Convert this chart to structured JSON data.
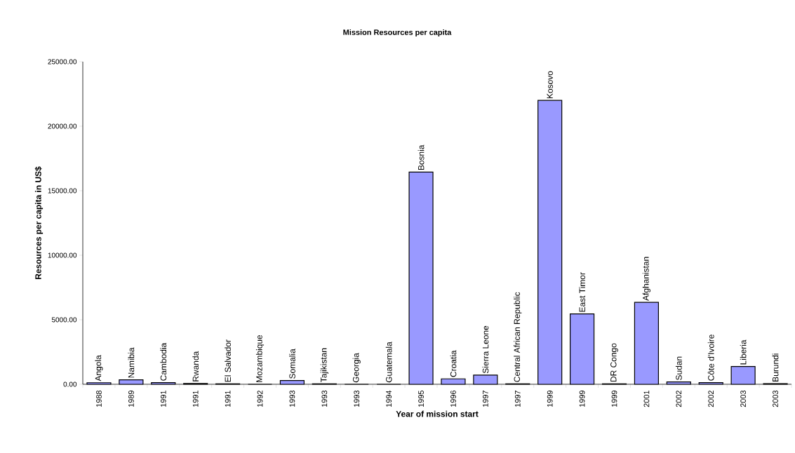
{
  "chart_data": {
    "type": "bar",
    "title": "Mission Resources per capita",
    "xlabel": "Year of mission start",
    "ylabel": "Resources per capita in US$",
    "categories": [
      "1988",
      "1989",
      "1991",
      "1991",
      "1991",
      "1992",
      "1993",
      "1993",
      "1993",
      "1994",
      "1995",
      "1996",
      "1997",
      "1997",
      "1999",
      "1999",
      "1999",
      "2001",
      "2002",
      "2002",
      "2003",
      "2003"
    ],
    "values": [
      120,
      350,
      130,
      60,
      30,
      0,
      290,
      30,
      0,
      0,
      16450,
      420,
      710,
      30,
      22000,
      5450,
      40,
      6350,
      180,
      130,
      1380,
      50
    ],
    "value_labels": [
      "Angola",
      "Namibia",
      "Cambodia",
      "Rwanda",
      "El Salvador",
      "Mozambique",
      "Somalia",
      "Tajikistan",
      "Georgia",
      "Guatemala",
      "Bosnia",
      "Croatia",
      "Sierra Leone",
      "Central African Republic",
      "Kosovo",
      "East Timor",
      "DR Congo",
      "Afghanistan",
      "Sudan",
      "Côte d'Ivoire",
      "Liberia",
      "Burundi"
    ],
    "color": "#9999ff",
    "ylim": [
      0,
      25000
    ],
    "yticks": [
      {
        "value": 0,
        "label": "0.00"
      },
      {
        "value": 5000,
        "label": "5000.00"
      },
      {
        "value": 10000,
        "label": "10000.00"
      },
      {
        "value": 15000,
        "label": "15000.00"
      },
      {
        "value": 20000,
        "label": "20000.00"
      },
      {
        "value": 25000,
        "label": "25000.00"
      }
    ],
    "grid": false
  }
}
